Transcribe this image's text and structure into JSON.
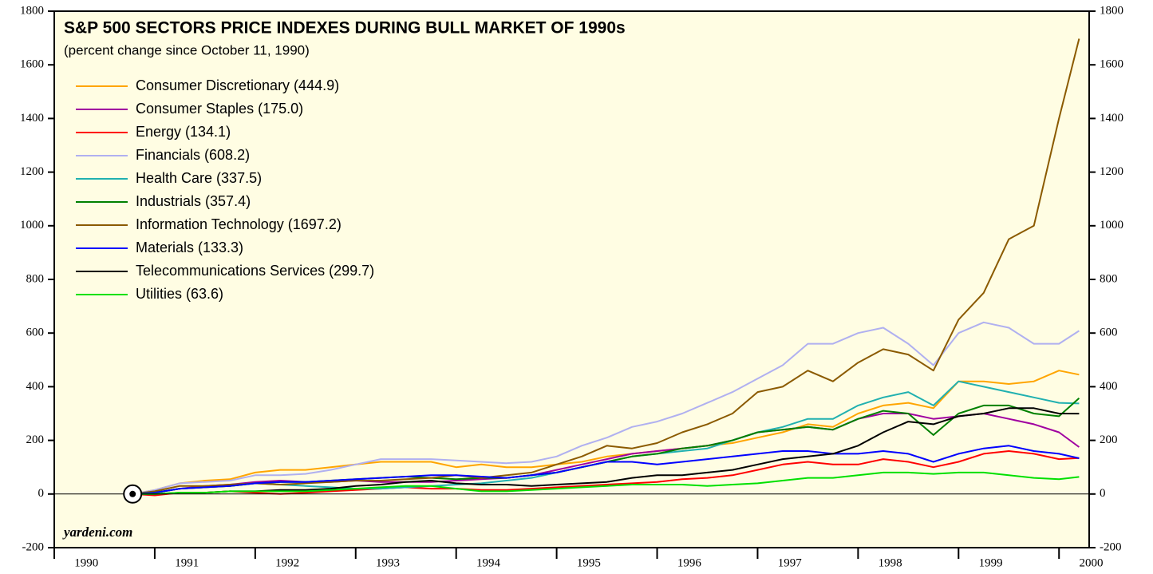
{
  "chart_data": {
    "type": "line",
    "title": "S&P 500 SECTORS PRICE INDEXES DURING BULL MARKET OF 1990s",
    "subtitle": "(percent change since October 11, 1990)",
    "annotation": "yardeni.com",
    "x": [
      1990.78,
      1991,
      1991.25,
      1991.5,
      1991.75,
      1992,
      1992.25,
      1992.5,
      1992.75,
      1993,
      1993.25,
      1993.5,
      1993.75,
      1994,
      1994.25,
      1994.5,
      1994.75,
      1995,
      1995.25,
      1995.5,
      1995.75,
      1996,
      1996.25,
      1996.5,
      1996.75,
      1997,
      1997.25,
      1997.5,
      1997.75,
      1998,
      1998.25,
      1998.5,
      1998.75,
      1999,
      1999.25,
      1999.5,
      1999.75,
      2000,
      2000.2
    ],
    "xlim": [
      1990,
      2000.3
    ],
    "xticks": [
      1990,
      1991,
      1992,
      1993,
      1994,
      1995,
      1996,
      1997,
      1998,
      1999,
      2000
    ],
    "ylim": [
      -200,
      1800
    ],
    "yticks": [
      -200,
      0,
      200,
      400,
      600,
      800,
      1000,
      1200,
      1400,
      1600,
      1800
    ],
    "series": [
      {
        "name": "Consumer Discretionary (444.9)",
        "color": "#ffa500",
        "values": [
          0,
          15,
          40,
          50,
          55,
          80,
          90,
          90,
          100,
          110,
          120,
          120,
          120,
          100,
          110,
          100,
          100,
          110,
          120,
          140,
          150,
          160,
          170,
          180,
          190,
          210,
          230,
          260,
          250,
          300,
          330,
          340,
          320,
          420,
          420,
          410,
          420,
          460,
          444.9
        ]
      },
      {
        "name": "Consumer Staples (175.0)",
        "color": "#a000a0",
        "values": [
          0,
          5,
          20,
          30,
          35,
          45,
          50,
          45,
          45,
          50,
          45,
          45,
          45,
          50,
          55,
          60,
          70,
          90,
          110,
          130,
          150,
          160,
          170,
          180,
          200,
          230,
          240,
          250,
          240,
          280,
          300,
          300,
          280,
          290,
          300,
          280,
          260,
          230,
          175.0
        ]
      },
      {
        "name": "Energy (134.1)",
        "color": "#ff0000",
        "values": [
          0,
          -5,
          5,
          5,
          10,
          5,
          0,
          5,
          10,
          15,
          20,
          25,
          20,
          20,
          15,
          15,
          20,
          25,
          30,
          35,
          40,
          45,
          55,
          60,
          70,
          90,
          110,
          120,
          110,
          110,
          130,
          120,
          100,
          120,
          150,
          160,
          150,
          130,
          134.1
        ]
      },
      {
        "name": "Financials (608.2)",
        "color": "#b0b0f0",
        "values": [
          0,
          15,
          40,
          45,
          50,
          70,
          70,
          75,
          90,
          110,
          130,
          130,
          130,
          125,
          120,
          115,
          120,
          140,
          180,
          210,
          250,
          270,
          300,
          340,
          380,
          430,
          480,
          560,
          560,
          600,
          620,
          560,
          480,
          600,
          640,
          620,
          560,
          560,
          608.2
        ]
      },
      {
        "name": "Health Care (337.5)",
        "color": "#20b0b0",
        "values": [
          0,
          5,
          20,
          25,
          30,
          40,
          35,
          30,
          25,
          20,
          20,
          25,
          30,
          35,
          40,
          50,
          60,
          80,
          100,
          120,
          140,
          150,
          160,
          170,
          200,
          230,
          250,
          280,
          280,
          330,
          360,
          380,
          330,
          420,
          400,
          380,
          360,
          340,
          337.5
        ]
      },
      {
        "name": "Industrials (357.4)",
        "color": "#008000",
        "values": [
          0,
          5,
          20,
          25,
          30,
          40,
          45,
          45,
          50,
          55,
          60,
          65,
          60,
          55,
          60,
          60,
          70,
          80,
          100,
          120,
          140,
          150,
          170,
          180,
          200,
          230,
          240,
          250,
          240,
          280,
          310,
          300,
          220,
          300,
          330,
          330,
          300,
          290,
          357.4
        ]
      },
      {
        "name": "Information Technology (1697.2)",
        "color": "#8b5a00",
        "values": [
          0,
          10,
          30,
          30,
          35,
          40,
          35,
          40,
          45,
          50,
          50,
          55,
          60,
          70,
          60,
          70,
          80,
          110,
          140,
          180,
          170,
          190,
          230,
          260,
          300,
          380,
          400,
          460,
          420,
          490,
          540,
          520,
          460,
          650,
          750,
          950,
          1000,
          1400,
          1697.2
        ]
      },
      {
        "name": "Materials (133.3)",
        "color": "#0000ff",
        "values": [
          0,
          5,
          20,
          25,
          30,
          40,
          45,
          45,
          50,
          55,
          60,
          65,
          70,
          70,
          65,
          60,
          70,
          80,
          100,
          120,
          120,
          110,
          120,
          130,
          140,
          150,
          160,
          160,
          150,
          150,
          160,
          150,
          120,
          150,
          170,
          180,
          160,
          150,
          133.3
        ]
      },
      {
        "name": "Telecommunications Services (299.7)",
        "color": "#000000",
        "values": [
          0,
          0,
          5,
          5,
          10,
          10,
          15,
          15,
          20,
          30,
          35,
          45,
          50,
          40,
          35,
          35,
          30,
          35,
          40,
          45,
          60,
          70,
          70,
          80,
          90,
          110,
          130,
          140,
          150,
          180,
          230,
          270,
          260,
          290,
          300,
          320,
          320,
          300,
          299.7
        ]
      },
      {
        "name": "Utilities (63.6)",
        "color": "#00e000",
        "values": [
          0,
          0,
          5,
          5,
          10,
          10,
          10,
          10,
          15,
          20,
          25,
          30,
          30,
          20,
          10,
          10,
          15,
          20,
          25,
          30,
          35,
          35,
          35,
          30,
          35,
          40,
          50,
          60,
          60,
          70,
          80,
          80,
          75,
          80,
          80,
          70,
          60,
          55,
          63.6
        ]
      }
    ]
  }
}
